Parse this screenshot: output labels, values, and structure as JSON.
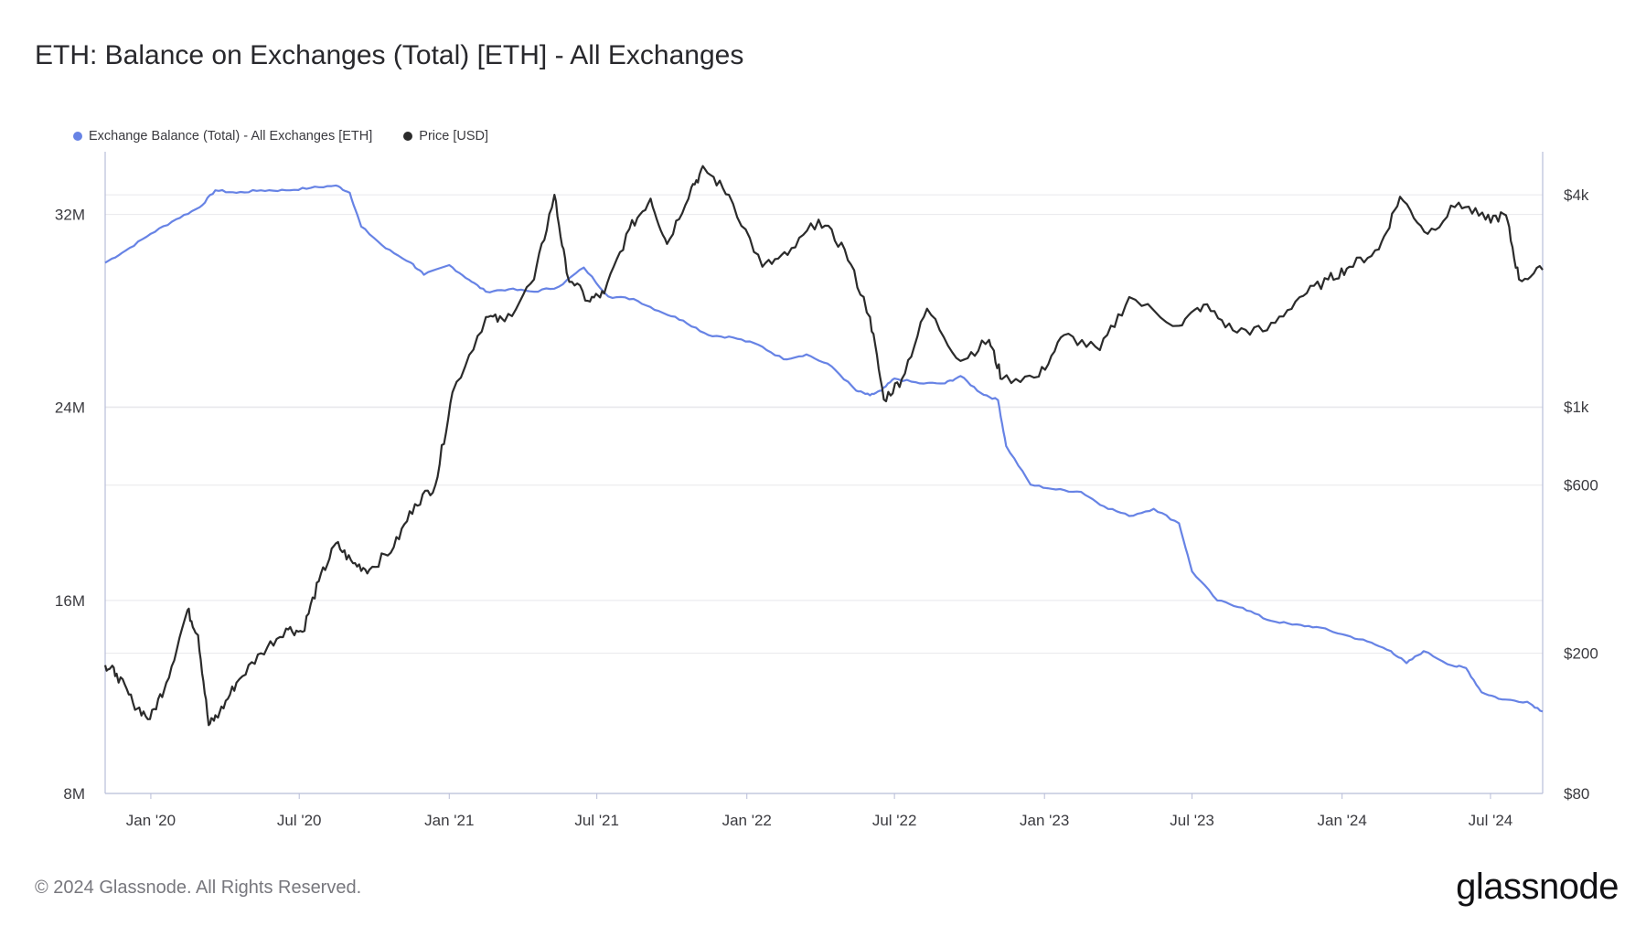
{
  "title": "ETH: Balance on Exchanges (Total) [ETH] - All Exchanges",
  "footer": "© 2024 Glassnode. All Rights Reserved.",
  "brand": "glassnode",
  "colors": {
    "balance": "#6783e5",
    "price": "#2b2b2b",
    "grid": "#e8e8ec",
    "axis": "#b8bdd8"
  },
  "chart_data": {
    "type": "line",
    "x_ticks": [
      "Jan '20",
      "Jul '20",
      "Jan '21",
      "Jul '21",
      "Jan '22",
      "Jul '22",
      "Jan '23",
      "Jul '23",
      "Jan '24",
      "Jul '24"
    ],
    "xlim": [
      "2019-11-06",
      "2024-09-03"
    ],
    "grid": "horizontal",
    "legend_position": "top-left",
    "left_axis": {
      "ticks": [
        "8M",
        "16M",
        "24M",
        "32M"
      ],
      "tick_values": [
        8000000,
        16000000,
        24000000,
        32000000
      ],
      "ylim": [
        8000000,
        34600000
      ]
    },
    "right_axis": {
      "scale": "log",
      "ticks": [
        "$80",
        "$200",
        "$600",
        "$1k",
        "$4k"
      ],
      "tick_values": [
        80,
        200,
        600,
        1000,
        4000
      ],
      "ylim": [
        80,
        5300
      ]
    },
    "series": [
      {
        "name": "Exchange Balance (Total) - All Exchanges [ETH]",
        "axis": "left",
        "points": [
          [
            "2019-11-06",
            30000000
          ],
          [
            "2019-12-01",
            30500000
          ],
          [
            "2020-01-01",
            31200000
          ],
          [
            "2020-02-01",
            31800000
          ],
          [
            "2020-03-01",
            32300000
          ],
          [
            "2020-03-20",
            33000000
          ],
          [
            "2020-04-15",
            32900000
          ],
          [
            "2020-05-15",
            33000000
          ],
          [
            "2020-06-15",
            33000000
          ],
          [
            "2020-07-15",
            33100000
          ],
          [
            "2020-08-15",
            33200000
          ],
          [
            "2020-09-01",
            32900000
          ],
          [
            "2020-09-15",
            31500000
          ],
          [
            "2020-10-15",
            30600000
          ],
          [
            "2020-11-15",
            30000000
          ],
          [
            "2020-12-01",
            29500000
          ],
          [
            "2021-01-01",
            29900000
          ],
          [
            "2021-01-25",
            29300000
          ],
          [
            "2021-02-15",
            28800000
          ],
          [
            "2021-03-15",
            28900000
          ],
          [
            "2021-04-15",
            28800000
          ],
          [
            "2021-05-15",
            29000000
          ],
          [
            "2021-06-15",
            29800000
          ],
          [
            "2021-07-15",
            28600000
          ],
          [
            "2021-08-15",
            28500000
          ],
          [
            "2021-09-15",
            28000000
          ],
          [
            "2021-10-15",
            27600000
          ],
          [
            "2021-11-15",
            27000000
          ],
          [
            "2021-12-15",
            26900000
          ],
          [
            "2022-01-15",
            26600000
          ],
          [
            "2022-02-15",
            26000000
          ],
          [
            "2022-03-15",
            26200000
          ],
          [
            "2022-04-15",
            25700000
          ],
          [
            "2022-05-15",
            24700000
          ],
          [
            "2022-06-01",
            24500000
          ],
          [
            "2022-06-15",
            24700000
          ],
          [
            "2022-07-01",
            25200000
          ],
          [
            "2022-08-01",
            25000000
          ],
          [
            "2022-09-01",
            25000000
          ],
          [
            "2022-09-20",
            25300000
          ],
          [
            "2022-10-15",
            24600000
          ],
          [
            "2022-11-05",
            24300000
          ],
          [
            "2022-11-15",
            22400000
          ],
          [
            "2022-12-15",
            20800000
          ],
          [
            "2023-01-15",
            20600000
          ],
          [
            "2023-02-15",
            20500000
          ],
          [
            "2023-03-15",
            19900000
          ],
          [
            "2023-04-15",
            19500000
          ],
          [
            "2023-05-15",
            19800000
          ],
          [
            "2023-06-15",
            19200000
          ],
          [
            "2023-07-01",
            17200000
          ],
          [
            "2023-08-01",
            16000000
          ],
          [
            "2023-09-01",
            15700000
          ],
          [
            "2023-10-01",
            15200000
          ],
          [
            "2023-11-01",
            15000000
          ],
          [
            "2023-12-01",
            14900000
          ],
          [
            "2024-01-01",
            14600000
          ],
          [
            "2024-02-01",
            14300000
          ],
          [
            "2024-03-01",
            13900000
          ],
          [
            "2024-03-20",
            13400000
          ],
          [
            "2024-04-10",
            13900000
          ],
          [
            "2024-05-15",
            13300000
          ],
          [
            "2024-06-01",
            13200000
          ],
          [
            "2024-06-20",
            12200000
          ],
          [
            "2024-07-15",
            11900000
          ],
          [
            "2024-08-15",
            11800000
          ],
          [
            "2024-09-03",
            11400000
          ]
        ]
      },
      {
        "name": "Price [USD]",
        "axis": "right",
        "points": [
          [
            "2019-11-06",
            185
          ],
          [
            "2019-11-20",
            175
          ],
          [
            "2019-12-10",
            145
          ],
          [
            "2019-12-31",
            130
          ],
          [
            "2020-01-20",
            165
          ],
          [
            "2020-02-15",
            265
          ],
          [
            "2020-02-28",
            225
          ],
          [
            "2020-03-12",
            125
          ],
          [
            "2020-03-25",
            135
          ],
          [
            "2020-04-15",
            165
          ],
          [
            "2020-05-15",
            200
          ],
          [
            "2020-06-15",
            235
          ],
          [
            "2020-07-05",
            230
          ],
          [
            "2020-07-25",
            320
          ],
          [
            "2020-08-15",
            410
          ],
          [
            "2020-09-05",
            360
          ],
          [
            "2020-09-25",
            345
          ],
          [
            "2020-10-25",
            400
          ],
          [
            "2020-11-20",
            530
          ],
          [
            "2020-12-15",
            600
          ],
          [
            "2021-01-05",
            1100
          ],
          [
            "2021-02-15",
            1800
          ],
          [
            "2021-03-10",
            1750
          ],
          [
            "2021-04-15",
            2300
          ],
          [
            "2021-05-10",
            4000
          ],
          [
            "2021-05-25",
            2400
          ],
          [
            "2021-06-20",
            2000
          ],
          [
            "2021-07-10",
            2100
          ],
          [
            "2021-08-10",
            3200
          ],
          [
            "2021-09-05",
            3900
          ],
          [
            "2021-09-25",
            2900
          ],
          [
            "2021-10-25",
            4200
          ],
          [
            "2021-11-10",
            4750
          ],
          [
            "2021-12-10",
            4000
          ],
          [
            "2022-01-20",
            2500
          ],
          [
            "2022-02-20",
            2700
          ],
          [
            "2022-03-30",
            3400
          ],
          [
            "2022-05-01",
            2800
          ],
          [
            "2022-06-01",
            1800
          ],
          [
            "2022-06-18",
            1050
          ],
          [
            "2022-07-10",
            1200
          ],
          [
            "2022-08-10",
            1900
          ],
          [
            "2022-09-20",
            1350
          ],
          [
            "2022-10-25",
            1550
          ],
          [
            "2022-11-10",
            1200
          ],
          [
            "2022-12-25",
            1220
          ],
          [
            "2023-01-25",
            1600
          ],
          [
            "2023-03-10",
            1450
          ],
          [
            "2023-04-15",
            2050
          ],
          [
            "2023-06-15",
            1700
          ],
          [
            "2023-07-15",
            1950
          ],
          [
            "2023-08-20",
            1650
          ],
          [
            "2023-10-01",
            1650
          ],
          [
            "2023-11-10",
            2050
          ],
          [
            "2023-12-15",
            2300
          ],
          [
            "2024-01-10",
            2500
          ],
          [
            "2024-02-15",
            2800
          ],
          [
            "2024-03-12",
            3950
          ],
          [
            "2024-04-15",
            3100
          ],
          [
            "2024-05-23",
            3800
          ],
          [
            "2024-06-25",
            3400
          ],
          [
            "2024-07-20",
            3500
          ],
          [
            "2024-08-05",
            2300
          ],
          [
            "2024-09-03",
            2450
          ]
        ]
      }
    ]
  }
}
